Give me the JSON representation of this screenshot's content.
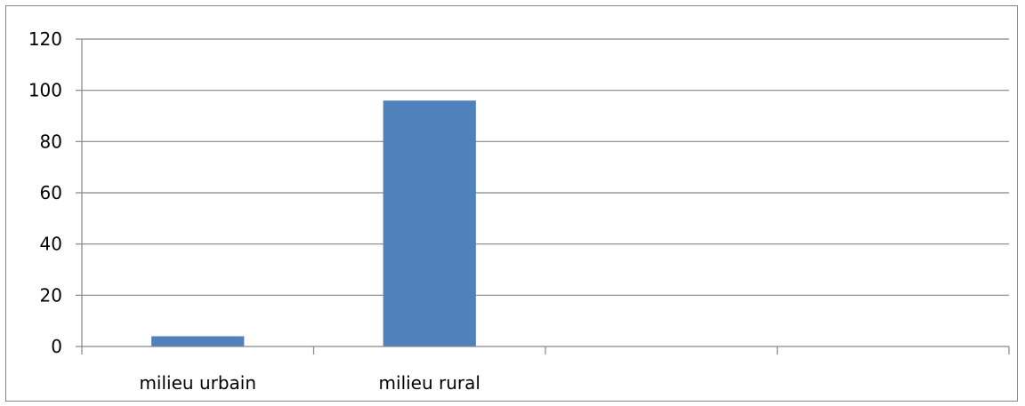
{
  "chart_data": {
    "type": "bar",
    "categories": [
      "milieu urbain",
      "milieu rural",
      "",
      ""
    ],
    "values": [
      4,
      96,
      null,
      null
    ],
    "title": "",
    "xlabel": "",
    "ylabel": "",
    "ylim": [
      0,
      120
    ],
    "yticks": [
      0,
      20,
      40,
      60,
      80,
      100,
      120
    ],
    "ytick_labels": [
      "0",
      "20",
      "40",
      "60",
      "80",
      "100",
      "120"
    ],
    "grid": true,
    "legend": "none",
    "bar_color": "#4F81BD",
    "grid_color": "#868686"
  }
}
